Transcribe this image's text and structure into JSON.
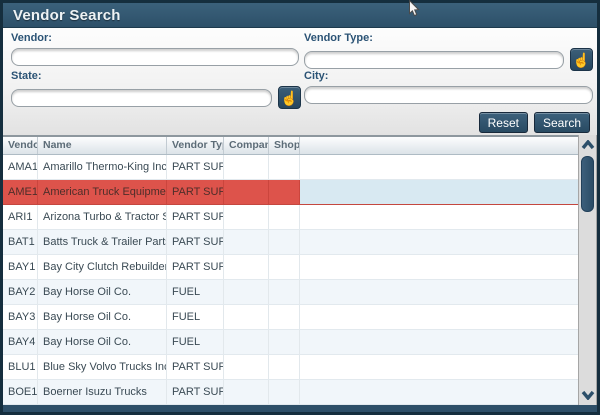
{
  "window": {
    "title": "Vendor Search"
  },
  "form": {
    "fields": [
      {
        "label": "Vendor:",
        "value": "",
        "has_picker": false
      },
      {
        "label": "Vendor Type:",
        "value": "",
        "has_picker": true
      },
      {
        "label": "State:",
        "value": "",
        "has_picker": true
      },
      {
        "label": "City:",
        "value": "",
        "has_picker": false
      }
    ],
    "picker_icon": "hand-pointer",
    "buttons": {
      "reset": "Reset",
      "search": "Search"
    }
  },
  "table": {
    "columns": [
      "Vendor",
      "Name",
      "Vendor Type",
      "Company",
      "Shop"
    ],
    "rows": [
      {
        "vendor": "AMA1",
        "name": "Amarillo Thermo-King Inc.",
        "vendor_type": "PART SUPPLY",
        "company": "",
        "shop": "",
        "selected": false
      },
      {
        "vendor": "AME1",
        "name": "American Truck Equipment",
        "vendor_type": "PART SUPPLY",
        "company": "",
        "shop": "",
        "selected": true
      },
      {
        "vendor": "ARI1",
        "name": "Arizona Turbo & Tractor Supply Inc.",
        "vendor_type": "PART SUPPLY",
        "company": "",
        "shop": "",
        "selected": false
      },
      {
        "vendor": "BAT1",
        "name": "Batts Truck & Trailer Parts",
        "vendor_type": "PART SUPPLY",
        "company": "",
        "shop": "",
        "selected": false
      },
      {
        "vendor": "BAY1",
        "name": "Bay City Clutch Rebuilders Inc.",
        "vendor_type": "PART SUPPLY",
        "company": "",
        "shop": "",
        "selected": false
      },
      {
        "vendor": "BAY2",
        "name": "Bay Horse Oil Co.",
        "vendor_type": "FUEL",
        "company": "",
        "shop": "",
        "selected": false
      },
      {
        "vendor": "BAY3",
        "name": "Bay Horse Oil Co.",
        "vendor_type": "FUEL",
        "company": "",
        "shop": "",
        "selected": false
      },
      {
        "vendor": "BAY4",
        "name": "Bay Horse Oil Co.",
        "vendor_type": "FUEL",
        "company": "",
        "shop": "",
        "selected": false
      },
      {
        "vendor": "BLU1",
        "name": "Blue Sky Volvo Trucks Inc.",
        "vendor_type": "PART SUPPLY",
        "company": "",
        "shop": "",
        "selected": false
      },
      {
        "vendor": "BOE1",
        "name": "Boerner Isuzu Trucks",
        "vendor_type": "PART SUPPLY",
        "company": "",
        "shop": "",
        "selected": false
      }
    ]
  },
  "colors": {
    "titlebar": "#31566e",
    "window_border": "#152e3e",
    "label_text": "#2b5375",
    "button": "#2d4d66",
    "selected_row": "#dd534b",
    "selection_highlight": "#d8e9f2",
    "stripe_row": "#f1f6fa",
    "table_text": "#3a4a54",
    "scrollbar_thumb": "#32566f"
  }
}
